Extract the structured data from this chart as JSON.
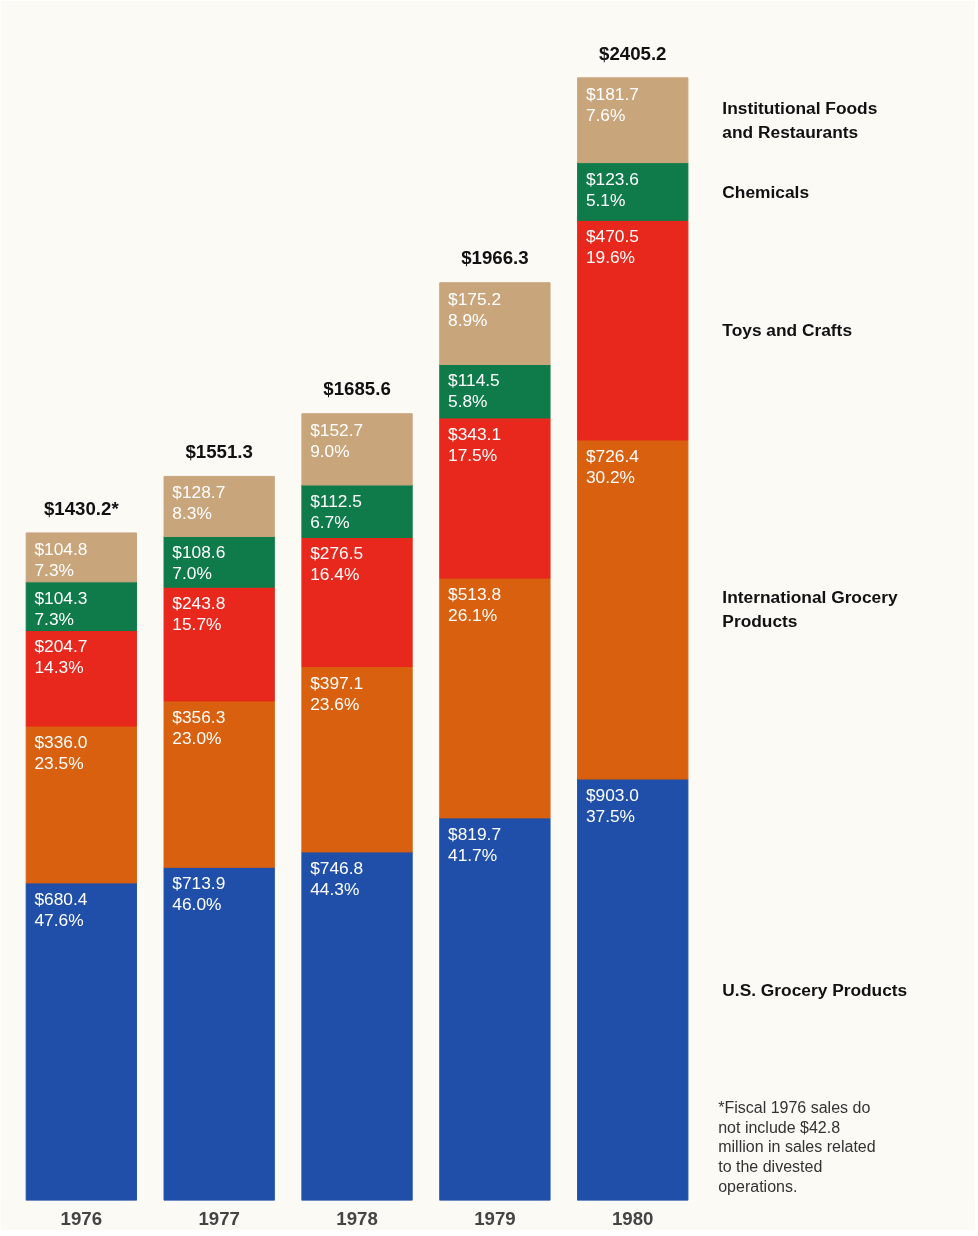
{
  "chart_data": {
    "type": "bar",
    "stacked": true,
    "categories": [
      "1976",
      "1977",
      "1978",
      "1979",
      "1980"
    ],
    "series": [
      {
        "name": "U.S. Grocery Products",
        "color": "#1f4fa8",
        "values": [
          680.4,
          713.9,
          746.8,
          819.7,
          903.0
        ],
        "value_labels": [
          "$680.4\n47.6%",
          "$713.9\n46.0%",
          "$746.8\n44.3%",
          "$819.7\n41.7%",
          "$903.0\n37.5%"
        ]
      },
      {
        "name": "International Grocery Products",
        "color": "#d9600f",
        "values": [
          336.0,
          356.3,
          397.1,
          513.8,
          726.4
        ],
        "value_labels": [
          "$336.0\n23.5%",
          "$356.3\n23.0%",
          "$397.1\n23.6%",
          "$513.8\n26.1%",
          "$726.4\n30.2%"
        ]
      },
      {
        "name": "Toys and Crafts",
        "color": "#e8281c",
        "values": [
          204.7,
          243.8,
          276.5,
          343.1,
          470.5
        ],
        "value_labels": [
          "$204.7\n14.3%",
          "$243.8\n15.7%",
          "$276.5\n16.4%",
          "$343.1\n17.5%",
          "$470.5\n19.6%"
        ]
      },
      {
        "name": "Chemicals",
        "color": "#0f7a4a",
        "values": [
          104.3,
          108.6,
          112.5,
          114.5,
          123.6
        ],
        "value_labels": [
          "$104.3\n7.3%",
          "$108.6\n7.0%",
          "$112.5\n6.7%",
          "$114.5\n5.8%",
          "$123.6\n5.1%"
        ]
      },
      {
        "name": "Institutional Foods and Restaurants",
        "color": "#c9a57c",
        "values": [
          104.8,
          128.7,
          152.7,
          175.2,
          181.7
        ],
        "value_labels": [
          "$104.8\n7.3%",
          "$128.7\n8.3%",
          "$152.7\n9.0%",
          "$175.2\n8.9%",
          "$181.7\n7.6%"
        ]
      }
    ],
    "totals": [
      "$1430.2*",
      "$1551.3",
      "$1685.6",
      "$1966.3",
      "$2405.2"
    ],
    "legend": "right",
    "grid": false,
    "annotations": [
      "*Fiscal 1976 sales do not include $42.8 million in sales related to the divested operations."
    ]
  }
}
